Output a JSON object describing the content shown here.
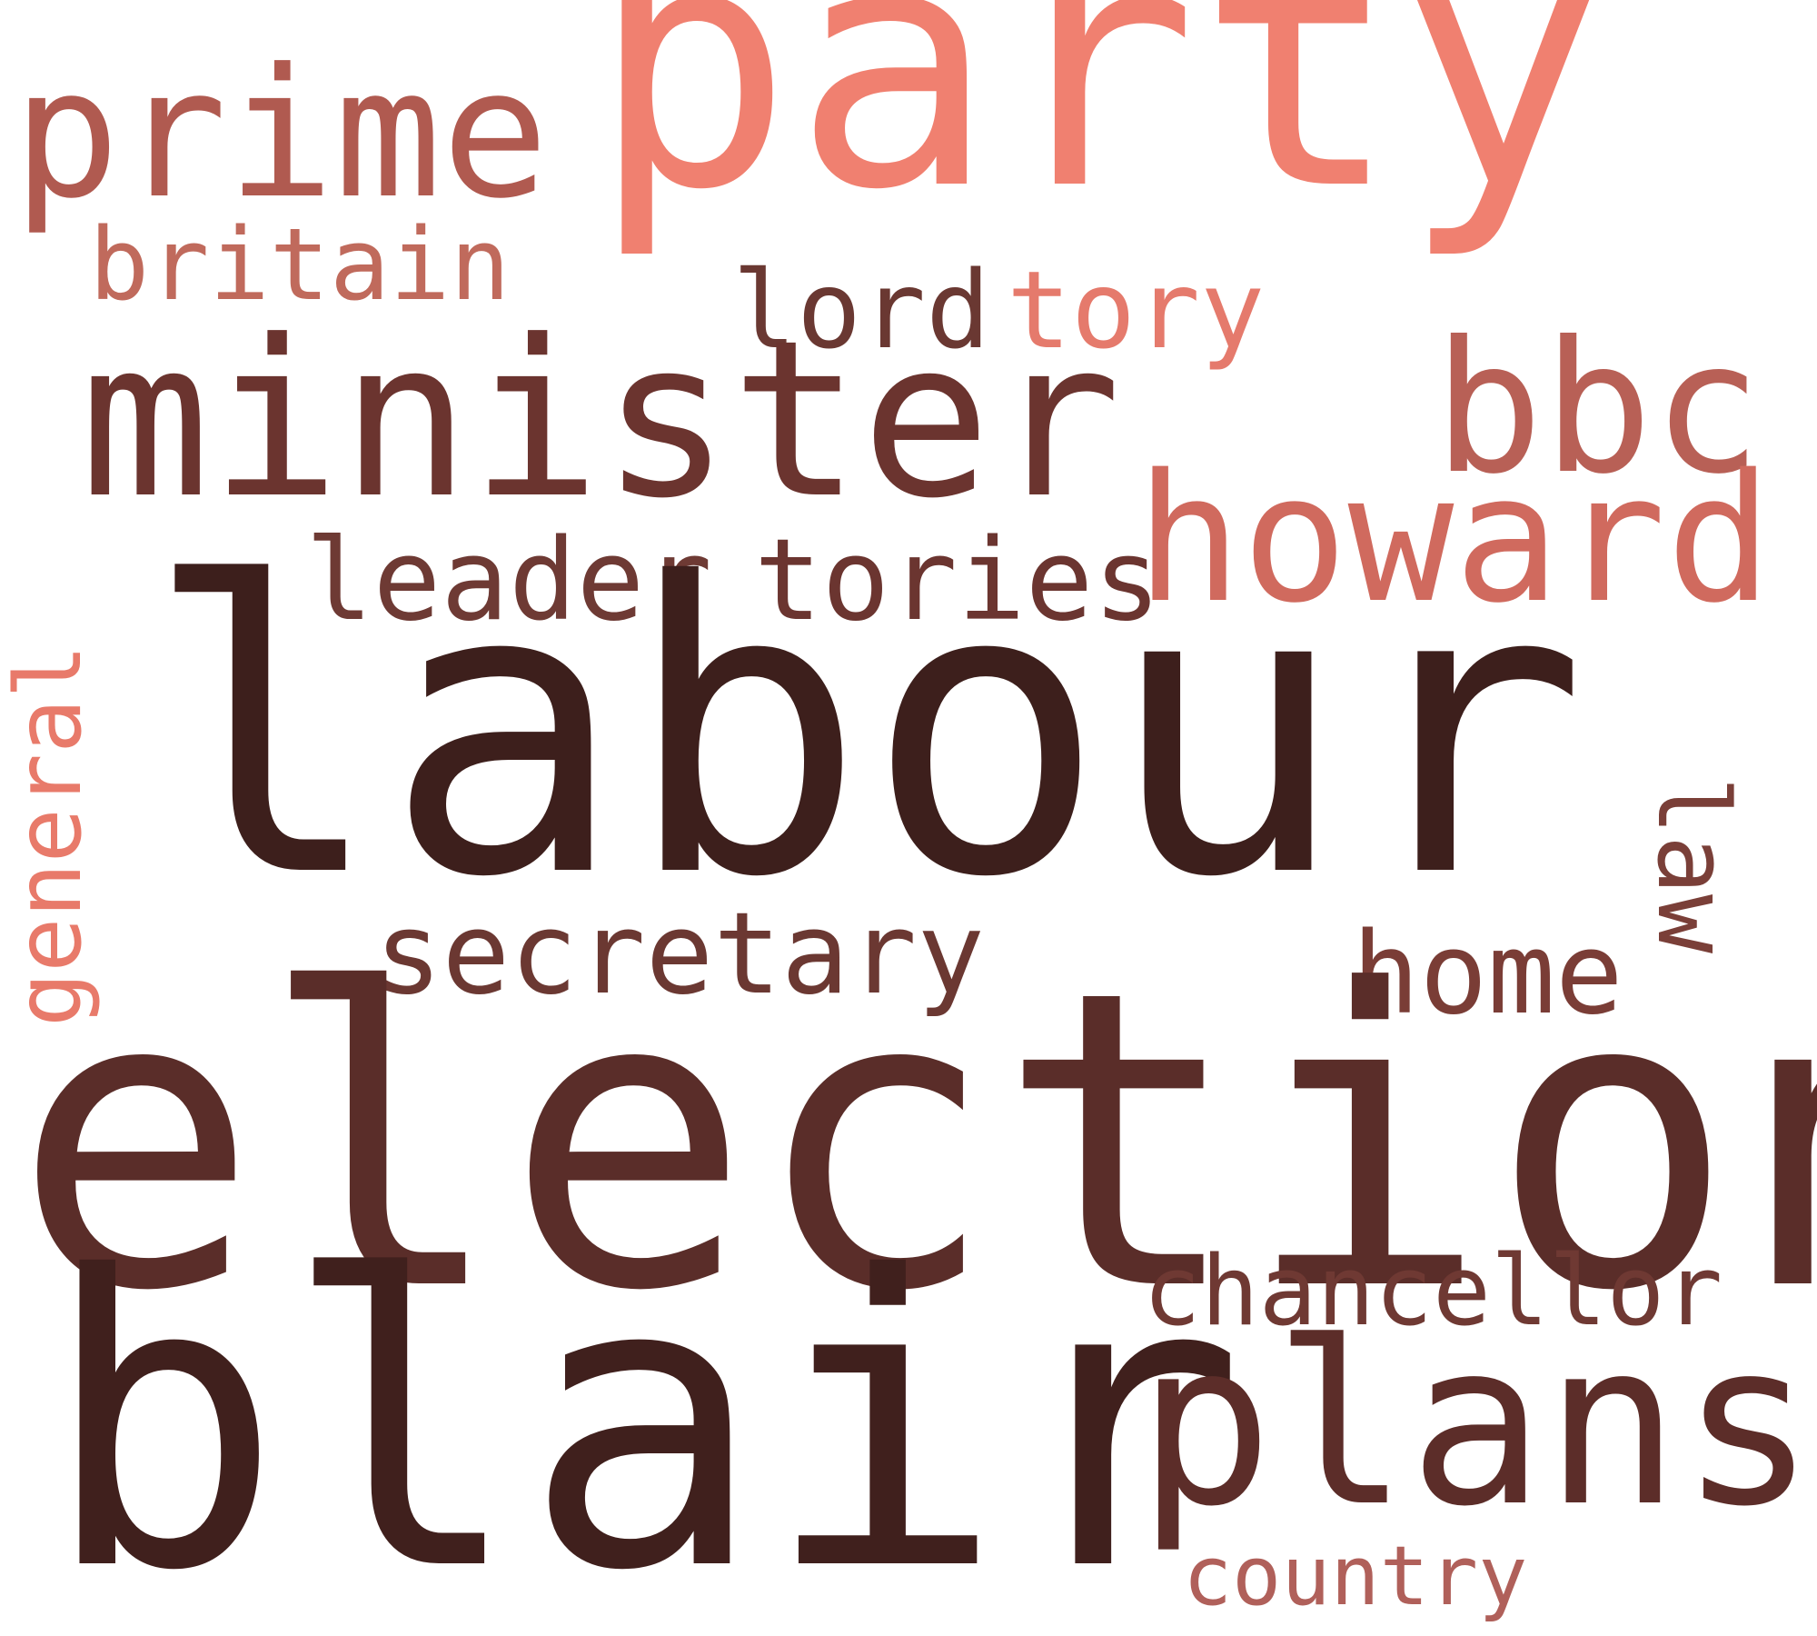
{
  "word_cloud": {
    "words": [
      {
        "id": "party",
        "text": "party",
        "color": "#f08070"
      },
      {
        "id": "prime",
        "text": "prime",
        "color": "#b05a50"
      },
      {
        "id": "britain",
        "text": "britain",
        "color": "#c06a5c"
      },
      {
        "id": "lord",
        "text": "lord",
        "color": "#6a3832"
      },
      {
        "id": "tory",
        "text": "tory",
        "color": "#e57a6c"
      },
      {
        "id": "minister",
        "text": "minister",
        "color": "#6b342f"
      },
      {
        "id": "bbc",
        "text": "bbc",
        "color": "#b86056"
      },
      {
        "id": "howard",
        "text": "howard",
        "color": "#d06a5e"
      },
      {
        "id": "leader",
        "text": "leader",
        "color": "#6e3a34"
      },
      {
        "id": "tories",
        "text": "tories",
        "color": "#6b3530"
      },
      {
        "id": "general",
        "text": "general",
        "color": "#e87a6a"
      },
      {
        "id": "labour",
        "text": "labour",
        "color": "#3d1f1c"
      },
      {
        "id": "law",
        "text": "law",
        "color": "#7a3f38"
      },
      {
        "id": "secretary",
        "text": "secretary",
        "color": "#6b3832"
      },
      {
        "id": "home",
        "text": "home",
        "color": "#7a3d36"
      },
      {
        "id": "election",
        "text": "election",
        "color": "#5a2d29"
      },
      {
        "id": "chancellor",
        "text": "chancellor",
        "color": "#6f3933"
      },
      {
        "id": "blair",
        "text": "blair",
        "color": "#40201d"
      },
      {
        "id": "plans",
        "text": "plans",
        "color": "#5c2d29"
      },
      {
        "id": "country",
        "text": "country",
        "color": "#b0605a"
      }
    ]
  }
}
